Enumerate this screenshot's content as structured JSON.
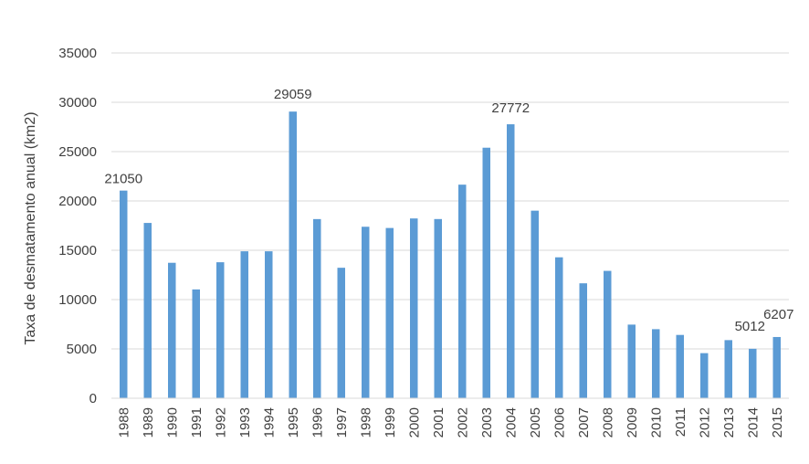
{
  "chart_data": {
    "type": "bar",
    "ylabel": "Taxa de desmatamento anual (km2)",
    "xlabel": "",
    "ylim": [
      0,
      35000
    ],
    "yticks": [
      0,
      5000,
      10000,
      15000,
      20000,
      25000,
      30000,
      35000
    ],
    "grid": true,
    "legend": "none",
    "bar_color": "#5b9bd5",
    "categories": [
      "1988",
      "1989",
      "1990",
      "1991",
      "1992",
      "1993",
      "1994",
      "1995",
      "1996",
      "1997",
      "1998",
      "1999",
      "2000",
      "2001",
      "2002",
      "2003",
      "2004",
      "2005",
      "2006",
      "2007",
      "2008",
      "2009",
      "2010",
      "2011",
      "2012",
      "2013",
      "2014",
      "2015"
    ],
    "values": [
      21050,
      17770,
      13730,
      11030,
      13786,
      14896,
      14896,
      29059,
      18161,
      13227,
      17383,
      17259,
      18226,
      18165,
      21651,
      25396,
      27772,
      19014,
      14286,
      11651,
      12911,
      7464,
      7000,
      6418,
      4571,
      5891,
      5012,
      6207
    ],
    "data_labels": [
      {
        "category": "1988",
        "text": "21050"
      },
      {
        "category": "1995",
        "text": "29059"
      },
      {
        "category": "2004",
        "text": "27772"
      },
      {
        "category": "2014",
        "text": "5012"
      },
      {
        "category": "2015",
        "text": "6207"
      }
    ]
  }
}
